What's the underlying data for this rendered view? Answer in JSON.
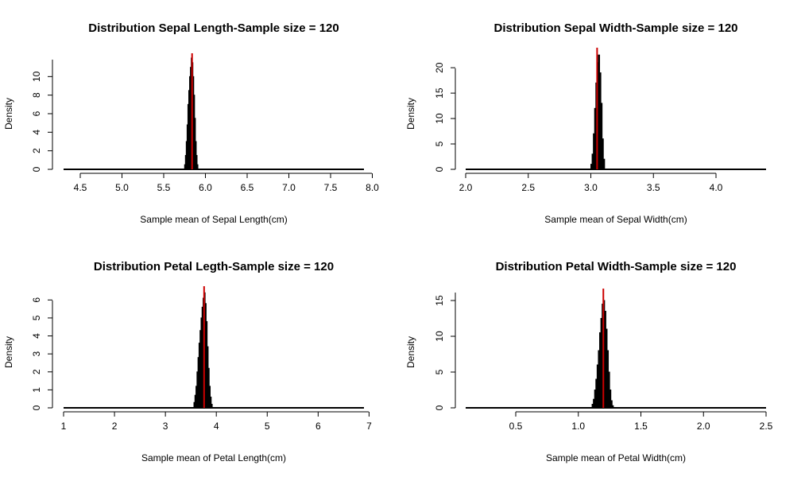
{
  "chart_data": [
    {
      "type": "histogram",
      "title": "Distribution Sepal Length-Sample size =  120",
      "xlabel": "Sample mean of Sepal Length(cm)",
      "ylabel": "Density",
      "xlim": [
        4.3,
        7.9
      ],
      "ylim": [
        0,
        12
      ],
      "x_ticks": [
        4.5,
        5.0,
        5.5,
        6.0,
        6.5,
        7.0,
        7.5,
        8.0
      ],
      "x_tick_labels": [
        "4.5",
        "5.0",
        "5.5",
        "6.0",
        "6.5",
        "7.0",
        "7.5",
        "8.0"
      ],
      "y_ticks": [
        0,
        2,
        4,
        6,
        8,
        10
      ],
      "y_tick_labels": [
        "0",
        "2",
        "4",
        "6",
        "8",
        "10"
      ],
      "bins": [
        [
          5.75,
          0.5
        ],
        [
          5.76,
          1.5
        ],
        [
          5.77,
          3.0
        ],
        [
          5.78,
          4.8
        ],
        [
          5.79,
          7.0
        ],
        [
          5.8,
          8.5
        ],
        [
          5.81,
          10.0
        ],
        [
          5.82,
          11.0
        ],
        [
          5.83,
          12.0
        ],
        [
          5.84,
          11.5
        ],
        [
          5.85,
          10.0
        ],
        [
          5.86,
          8.0
        ],
        [
          5.87,
          5.5
        ],
        [
          5.88,
          3.0
        ],
        [
          5.89,
          1.5
        ],
        [
          5.9,
          0.5
        ]
      ],
      "bin_width": 0.01,
      "mean_line": 5.84,
      "mean_color": "#cc0000",
      "bar_color": "#000000"
    },
    {
      "type": "histogram",
      "title": "Distribution Sepal Width-Sample size =  120",
      "xlabel": "Sample mean of Sepal Width(cm)",
      "ylabel": "Density",
      "xlim": [
        2.0,
        4.4
      ],
      "ylim": [
        0,
        23
      ],
      "x_ticks": [
        2.0,
        2.5,
        3.0,
        3.5,
        4.0
      ],
      "x_tick_labels": [
        "2.0",
        "2.5",
        "3.0",
        "3.5",
        "4.0"
      ],
      "y_ticks": [
        0,
        5,
        10,
        15,
        20
      ],
      "y_tick_labels": [
        "0",
        "5",
        "10",
        "15",
        "20"
      ],
      "bins": [
        [
          3.0,
          1.0
        ],
        [
          3.01,
          3.0
        ],
        [
          3.02,
          7.0
        ],
        [
          3.03,
          12.0
        ],
        [
          3.04,
          17.0
        ],
        [
          3.05,
          21.0
        ],
        [
          3.06,
          22.5
        ],
        [
          3.07,
          19.0
        ],
        [
          3.08,
          13.0
        ],
        [
          3.09,
          6.0
        ],
        [
          3.1,
          2.0
        ]
      ],
      "bin_width": 0.01,
      "mean_line": 3.05,
      "mean_color": "#cc0000",
      "bar_color": "#000000"
    },
    {
      "type": "histogram",
      "title": "Distribution Petal Legth-Sample size =  120",
      "xlabel": "Sample mean of Petal Length(cm)",
      "ylabel": "Density",
      "xlim": [
        1.0,
        6.9
      ],
      "ylim": [
        0,
        6.5
      ],
      "x_ticks": [
        1,
        2,
        3,
        4,
        5,
        6,
        7
      ],
      "x_tick_labels": [
        "1",
        "2",
        "3",
        "4",
        "5",
        "6",
        "7"
      ],
      "y_ticks": [
        0,
        1,
        2,
        3,
        4,
        5,
        6
      ],
      "y_tick_labels": [
        "0",
        "1",
        "2",
        "3",
        "4",
        "5",
        "6"
      ],
      "bins": [
        [
          3.56,
          0.3
        ],
        [
          3.58,
          0.7
        ],
        [
          3.6,
          1.2
        ],
        [
          3.62,
          2.0
        ],
        [
          3.64,
          2.8
        ],
        [
          3.66,
          3.6
        ],
        [
          3.68,
          4.3
        ],
        [
          3.7,
          5.0
        ],
        [
          3.72,
          5.6
        ],
        [
          3.74,
          6.1
        ],
        [
          3.76,
          6.4
        ],
        [
          3.78,
          5.8
        ],
        [
          3.8,
          4.8
        ],
        [
          3.82,
          3.4
        ],
        [
          3.84,
          2.2
        ],
        [
          3.86,
          1.2
        ],
        [
          3.88,
          0.6
        ],
        [
          3.9,
          0.2
        ]
      ],
      "bin_width": 0.02,
      "mean_line": 3.76,
      "mean_color": "#cc0000",
      "bar_color": "#000000"
    },
    {
      "type": "histogram",
      "title": "Distribution Petal Width-Sample size =  120",
      "xlabel": "Sample mean of Petal Width(cm)",
      "ylabel": "Density",
      "xlim": [
        0.1,
        2.5
      ],
      "ylim": [
        0,
        16
      ],
      "x_ticks": [
        0.5,
        1.0,
        1.5,
        2.0,
        2.5
      ],
      "x_tick_labels": [
        "0.5",
        "1.0",
        "1.5",
        "2.0",
        "2.5"
      ],
      "y_ticks": [
        0,
        5,
        10,
        15
      ],
      "y_tick_labels": [
        "0",
        "5",
        "10",
        "15"
      ],
      "bins": [
        [
          1.11,
          0.5
        ],
        [
          1.12,
          1.2
        ],
        [
          1.13,
          2.5
        ],
        [
          1.14,
          4.0
        ],
        [
          1.15,
          6.0
        ],
        [
          1.16,
          8.0
        ],
        [
          1.17,
          10.5
        ],
        [
          1.18,
          12.5
        ],
        [
          1.19,
          14.5
        ],
        [
          1.2,
          15.0
        ],
        [
          1.21,
          13.5
        ],
        [
          1.22,
          11.0
        ],
        [
          1.23,
          8.0
        ],
        [
          1.24,
          5.0
        ],
        [
          1.25,
          2.5
        ],
        [
          1.26,
          1.0
        ],
        [
          1.27,
          0.3
        ]
      ],
      "bin_width": 0.01,
      "mean_line": 1.2,
      "mean_color": "#cc0000",
      "bar_color": "#000000"
    }
  ]
}
